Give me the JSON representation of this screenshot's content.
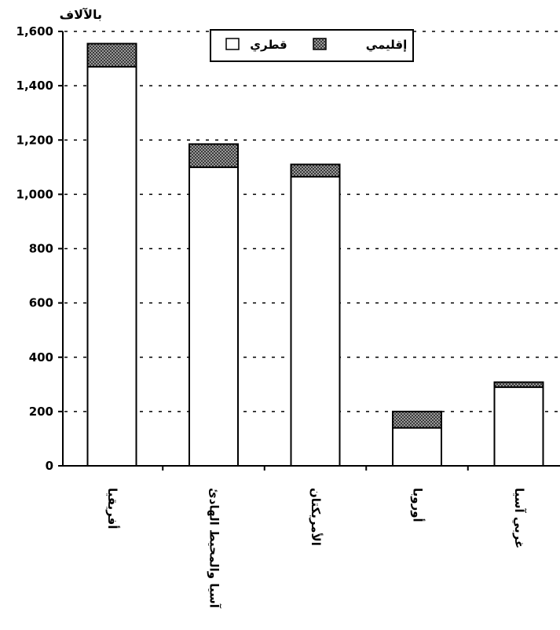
{
  "chart_data": {
    "type": "bar",
    "stacked": true,
    "unit_label": "بالآلاف",
    "categories": [
      "أفريقيا",
      "آسيا والمحيط الهادئ",
      "الأمريكتان",
      "أوروبا",
      "غربي آسيا"
    ],
    "series": [
      {
        "name": "قطري",
        "values": [
          1470,
          1100,
          1065,
          140,
          290
        ],
        "color": "#ffffff"
      },
      {
        "name": "إقليمي",
        "values": [
          85,
          85,
          45,
          60,
          18
        ],
        "color": "#888888"
      }
    ],
    "ylim": [
      0,
      1600
    ],
    "yticks": [
      0,
      200,
      400,
      600,
      800,
      1000,
      1200,
      1400,
      1600
    ],
    "ytick_labels": [
      "0",
      "200",
      "400",
      "600",
      "800",
      "1,000",
      "1,200",
      "1,400",
      "1,600"
    ],
    "grid": "dashed horizontal",
    "legend_position": "top"
  }
}
